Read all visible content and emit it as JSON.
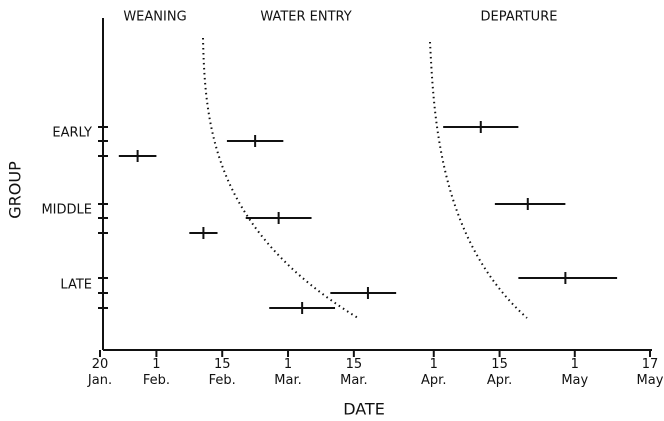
{
  "chart_data": {
    "type": "interval",
    "annotations": [
      "WEANING",
      "WATER ENTRY",
      "DEPARTURE"
    ],
    "x_label": "DATE",
    "y_label": "GROUP",
    "categories": [
      null,
      "EARLY",
      null,
      null,
      "MIDDLE",
      null,
      null,
      "LATE",
      null
    ],
    "xlim": [
      20,
      137
    ],
    "xticks": [
      {
        "value": 20,
        "label": "20 Jan."
      },
      {
        "value": 32,
        "label": "1 Feb."
      },
      {
        "value": 46,
        "label": "15 Feb."
      },
      {
        "value": 60,
        "label": "1 Mar."
      },
      {
        "value": 74,
        "label": "15 Mar."
      },
      {
        "value": 91,
        "label": "1 Apr."
      },
      {
        "value": 105,
        "label": "15 Apr."
      },
      {
        "value": 121,
        "label": "1 May"
      },
      {
        "value": 137,
        "label": "17 May"
      }
    ],
    "color": "#111111",
    "series": [
      {
        "name": "WEANING",
        "start": [
          null,
          null,
          24,
          null,
          null,
          39,
          null,
          null,
          56
        ],
        "mid": [
          null,
          null,
          28,
          null,
          null,
          42,
          null,
          null,
          63
        ],
        "end": [
          null,
          null,
          32,
          null,
          null,
          45,
          null,
          null,
          70
        ]
      },
      {
        "name": "WATER ENTRY",
        "start": [
          null,
          47,
          null,
          null,
          51,
          null,
          null,
          69,
          null
        ],
        "mid": [
          null,
          53,
          null,
          null,
          58,
          null,
          null,
          77,
          null
        ],
        "end": [
          null,
          59,
          null,
          null,
          65,
          null,
          null,
          83,
          null
        ]
      },
      {
        "name": "DEPARTURE",
        "start": [
          93,
          null,
          null,
          104,
          null,
          null,
          109,
          null,
          null
        ],
        "mid": [
          101,
          null,
          null,
          111,
          null,
          null,
          119,
          null,
          null
        ],
        "end": [
          109,
          null,
          null,
          119,
          null,
          null,
          130,
          null,
          null
        ]
      }
    ]
  }
}
